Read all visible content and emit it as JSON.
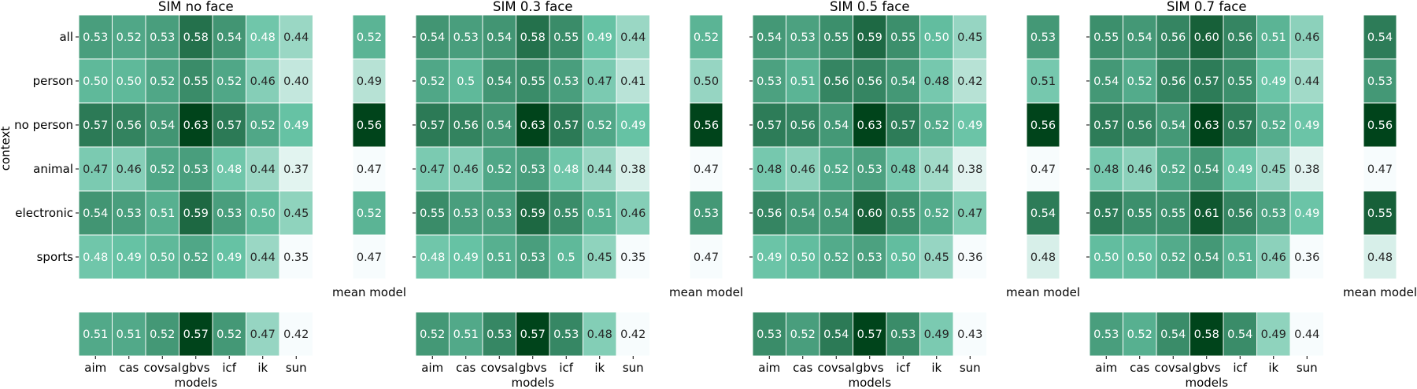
{
  "figure": {
    "ylabel": "context"
  },
  "color_scale": {
    "low": "#f7fcfd",
    "mid": "#66c2a4",
    "high": "#00441b"
  },
  "chart_data": [
    {
      "type": "heatmap",
      "title": "SIM no face",
      "rows": [
        "all",
        "person",
        "no person",
        "animal",
        "electronic",
        "sports"
      ],
      "columns": [
        "aim",
        "cas",
        "covsal",
        "gbvs",
        "icf",
        "ik",
        "sun"
      ],
      "values": [
        [
          "0.53",
          "0.52",
          "0.53",
          "0.58",
          "0.54",
          "0.48",
          "0.44"
        ],
        [
          "0.50",
          "0.50",
          "0.52",
          "0.55",
          "0.52",
          "0.46",
          "0.40"
        ],
        [
          "0.57",
          "0.56",
          "0.54",
          "0.63",
          "0.57",
          "0.52",
          "0.49"
        ],
        [
          "0.47",
          "0.46",
          "0.52",
          "0.53",
          "0.48",
          "0.44",
          "0.37"
        ],
        [
          "0.54",
          "0.53",
          "0.51",
          "0.59",
          "0.53",
          "0.50",
          "0.45"
        ],
        [
          "0.48",
          "0.49",
          "0.50",
          "0.52",
          "0.49",
          "0.44",
          "0.35"
        ]
      ],
      "mean_model_label": "mean model",
      "mean_model": [
        "0.52",
        "0.49",
        "0.56",
        "0.47",
        "0.52",
        "0.47"
      ],
      "model_means": [
        "0.51",
        "0.51",
        "0.52",
        "0.57",
        "0.52",
        "0.47",
        "0.42"
      ],
      "xlabel": "models"
    },
    {
      "type": "heatmap",
      "title": "SIM 0.3 face",
      "rows": [
        "all",
        "person",
        "no person",
        "animal",
        "electronic",
        "sports"
      ],
      "columns": [
        "aim",
        "cas",
        "covsal",
        "gbvs",
        "icf",
        "ik",
        "sun"
      ],
      "values": [
        [
          "0.54",
          "0.53",
          "0.54",
          "0.58",
          "0.55",
          "0.49",
          "0.44"
        ],
        [
          "0.52",
          "0.5",
          "0.54",
          "0.55",
          "0.53",
          "0.47",
          "0.41"
        ],
        [
          "0.57",
          "0.56",
          "0.54",
          "0.63",
          "0.57",
          "0.52",
          "0.49"
        ],
        [
          "0.47",
          "0.46",
          "0.52",
          "0.53",
          "0.48",
          "0.44",
          "0.38"
        ],
        [
          "0.55",
          "0.53",
          "0.53",
          "0.59",
          "0.55",
          "0.51",
          "0.46"
        ],
        [
          "0.48",
          "0.49",
          "0.51",
          "0.53",
          "0.5",
          "0.45",
          "0.35"
        ]
      ],
      "mean_model_label": "mean model",
      "mean_model": [
        "0.52",
        "0.50",
        "0.56",
        "0.47",
        "0.53",
        "0.47"
      ],
      "model_means": [
        "0.52",
        "0.51",
        "0.53",
        "0.57",
        "0.53",
        "0.48",
        "0.42"
      ],
      "xlabel": "models"
    },
    {
      "type": "heatmap",
      "title": "SIM 0.5 face",
      "rows": [
        "all",
        "person",
        "no person",
        "animal",
        "electronic",
        "sports"
      ],
      "columns": [
        "aim",
        "cas",
        "covsal",
        "gbvs",
        "icf",
        "ik",
        "sun"
      ],
      "values": [
        [
          "0.54",
          "0.53",
          "0.55",
          "0.59",
          "0.55",
          "0.50",
          "0.45"
        ],
        [
          "0.53",
          "0.51",
          "0.56",
          "0.56",
          "0.54",
          "0.48",
          "0.42"
        ],
        [
          "0.57",
          "0.56",
          "0.54",
          "0.63",
          "0.57",
          "0.52",
          "0.49"
        ],
        [
          "0.48",
          "0.46",
          "0.52",
          "0.53",
          "0.48",
          "0.44",
          "0.38"
        ],
        [
          "0.56",
          "0.54",
          "0.54",
          "0.60",
          "0.55",
          "0.52",
          "0.47"
        ],
        [
          "0.49",
          "0.50",
          "0.52",
          "0.53",
          "0.50",
          "0.45",
          "0.36"
        ]
      ],
      "mean_model_label": "mean model",
      "mean_model": [
        "0.53",
        "0.51",
        "0.56",
        "0.47",
        "0.54",
        "0.48"
      ],
      "model_means": [
        "0.53",
        "0.52",
        "0.54",
        "0.57",
        "0.53",
        "0.49",
        "0.43"
      ],
      "xlabel": "models"
    },
    {
      "type": "heatmap",
      "title": "SIM 0.7 face",
      "rows": [
        "all",
        "person",
        "no person",
        "animal",
        "electronic",
        "sports"
      ],
      "columns": [
        "aim",
        "cas",
        "covsal",
        "gbvs",
        "icf",
        "ik",
        "sun"
      ],
      "values": [
        [
          "0.55",
          "0.54",
          "0.56",
          "0.60",
          "0.56",
          "0.51",
          "0.46"
        ],
        [
          "0.54",
          "0.52",
          "0.56",
          "0.57",
          "0.55",
          "0.49",
          "0.44"
        ],
        [
          "0.57",
          "0.56",
          "0.54",
          "0.63",
          "0.57",
          "0.52",
          "0.49"
        ],
        [
          "0.48",
          "0.46",
          "0.52",
          "0.54",
          "0.49",
          "0.45",
          "0.38"
        ],
        [
          "0.57",
          "0.55",
          "0.55",
          "0.61",
          "0.56",
          "0.53",
          "0.49"
        ],
        [
          "0.50",
          "0.50",
          "0.52",
          "0.54",
          "0.51",
          "0.46",
          "0.36"
        ]
      ],
      "mean_model_label": "mean model",
      "mean_model": [
        "0.54",
        "0.53",
        "0.56",
        "0.47",
        "0.55",
        "0.48"
      ],
      "model_means": [
        "0.53",
        "0.52",
        "0.54",
        "0.58",
        "0.54",
        "0.49",
        "0.44"
      ],
      "xlabel": "models"
    }
  ]
}
